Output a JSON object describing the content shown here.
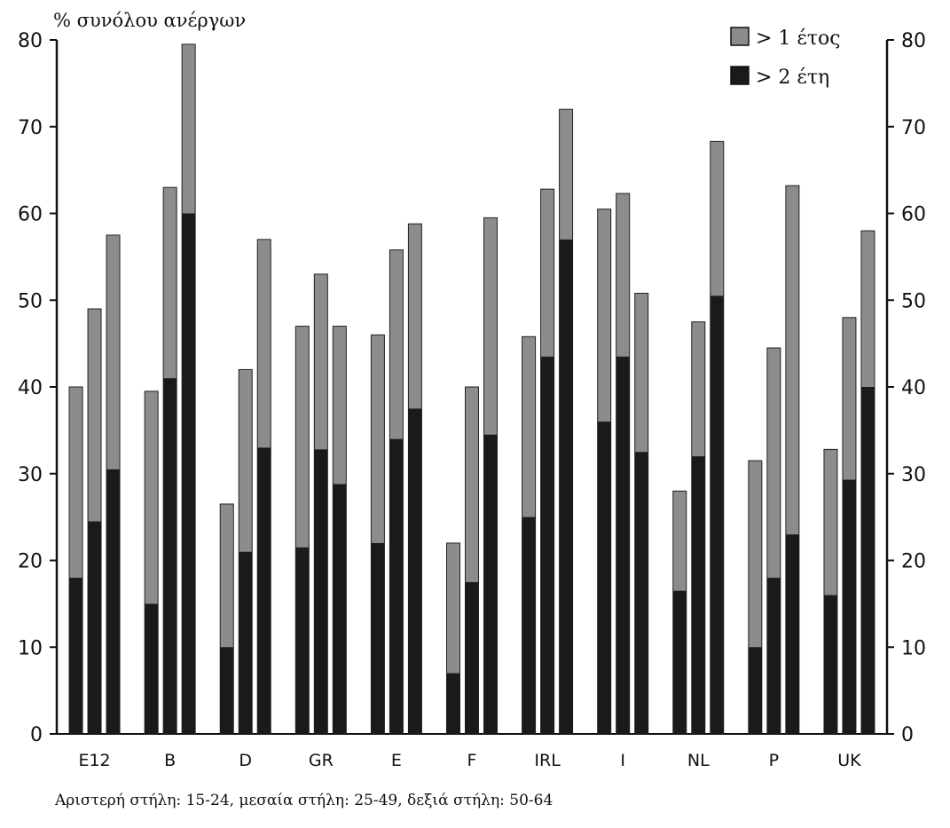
{
  "chart_data": {
    "type": "bar",
    "ylabel": "% συνόλου ανέργων",
    "ylim": [
      0,
      80
    ],
    "yticks": [
      0,
      10,
      20,
      30,
      40,
      50,
      60,
      70,
      80
    ],
    "right_axis": true,
    "grid": false,
    "legend_position": "top-right",
    "categories": [
      "E12",
      "B",
      "D",
      "GR",
      "E",
      "F",
      "IRL",
      "I",
      "NL",
      "P",
      "UK"
    ],
    "bar_groups_per_category": [
      "15-24",
      "25-49",
      "50-64"
    ],
    "series": [
      {
        "name": "> 1 έτος",
        "color": "#8c8c8c",
        "values": [
          [
            40,
            49,
            57.5
          ],
          [
            39.5,
            63,
            79.5
          ],
          [
            26.5,
            42,
            57
          ],
          [
            47,
            53,
            47
          ],
          [
            46,
            55.8,
            58.8
          ],
          [
            22,
            40,
            59.5
          ],
          [
            45.8,
            62.8,
            72
          ],
          [
            60.5,
            62.3,
            50.8
          ],
          [
            28,
            47.5,
            68.3
          ],
          [
            31.5,
            44.5,
            63.2
          ],
          [
            32.8,
            48,
            58
          ]
        ]
      },
      {
        "name": "> 2 έτη",
        "color": "#1a1a1a",
        "values": [
          [
            18,
            24.5,
            30.5
          ],
          [
            15,
            41,
            60
          ],
          [
            10,
            21,
            33
          ],
          [
            21.5,
            32.8,
            28.8
          ],
          [
            22,
            34,
            37.5
          ],
          [
            7,
            17.5,
            34.5
          ],
          [
            25,
            43.5,
            57
          ],
          [
            36,
            43.5,
            32.5
          ],
          [
            16.5,
            32,
            50.5
          ],
          [
            10,
            18,
            23
          ],
          [
            16,
            29.3,
            40
          ]
        ]
      }
    ],
    "footnote": "Αριστερή στήλη: 15-24, μεσαία στήλη: 25-49, δεξιά στήλη: 50-64"
  }
}
